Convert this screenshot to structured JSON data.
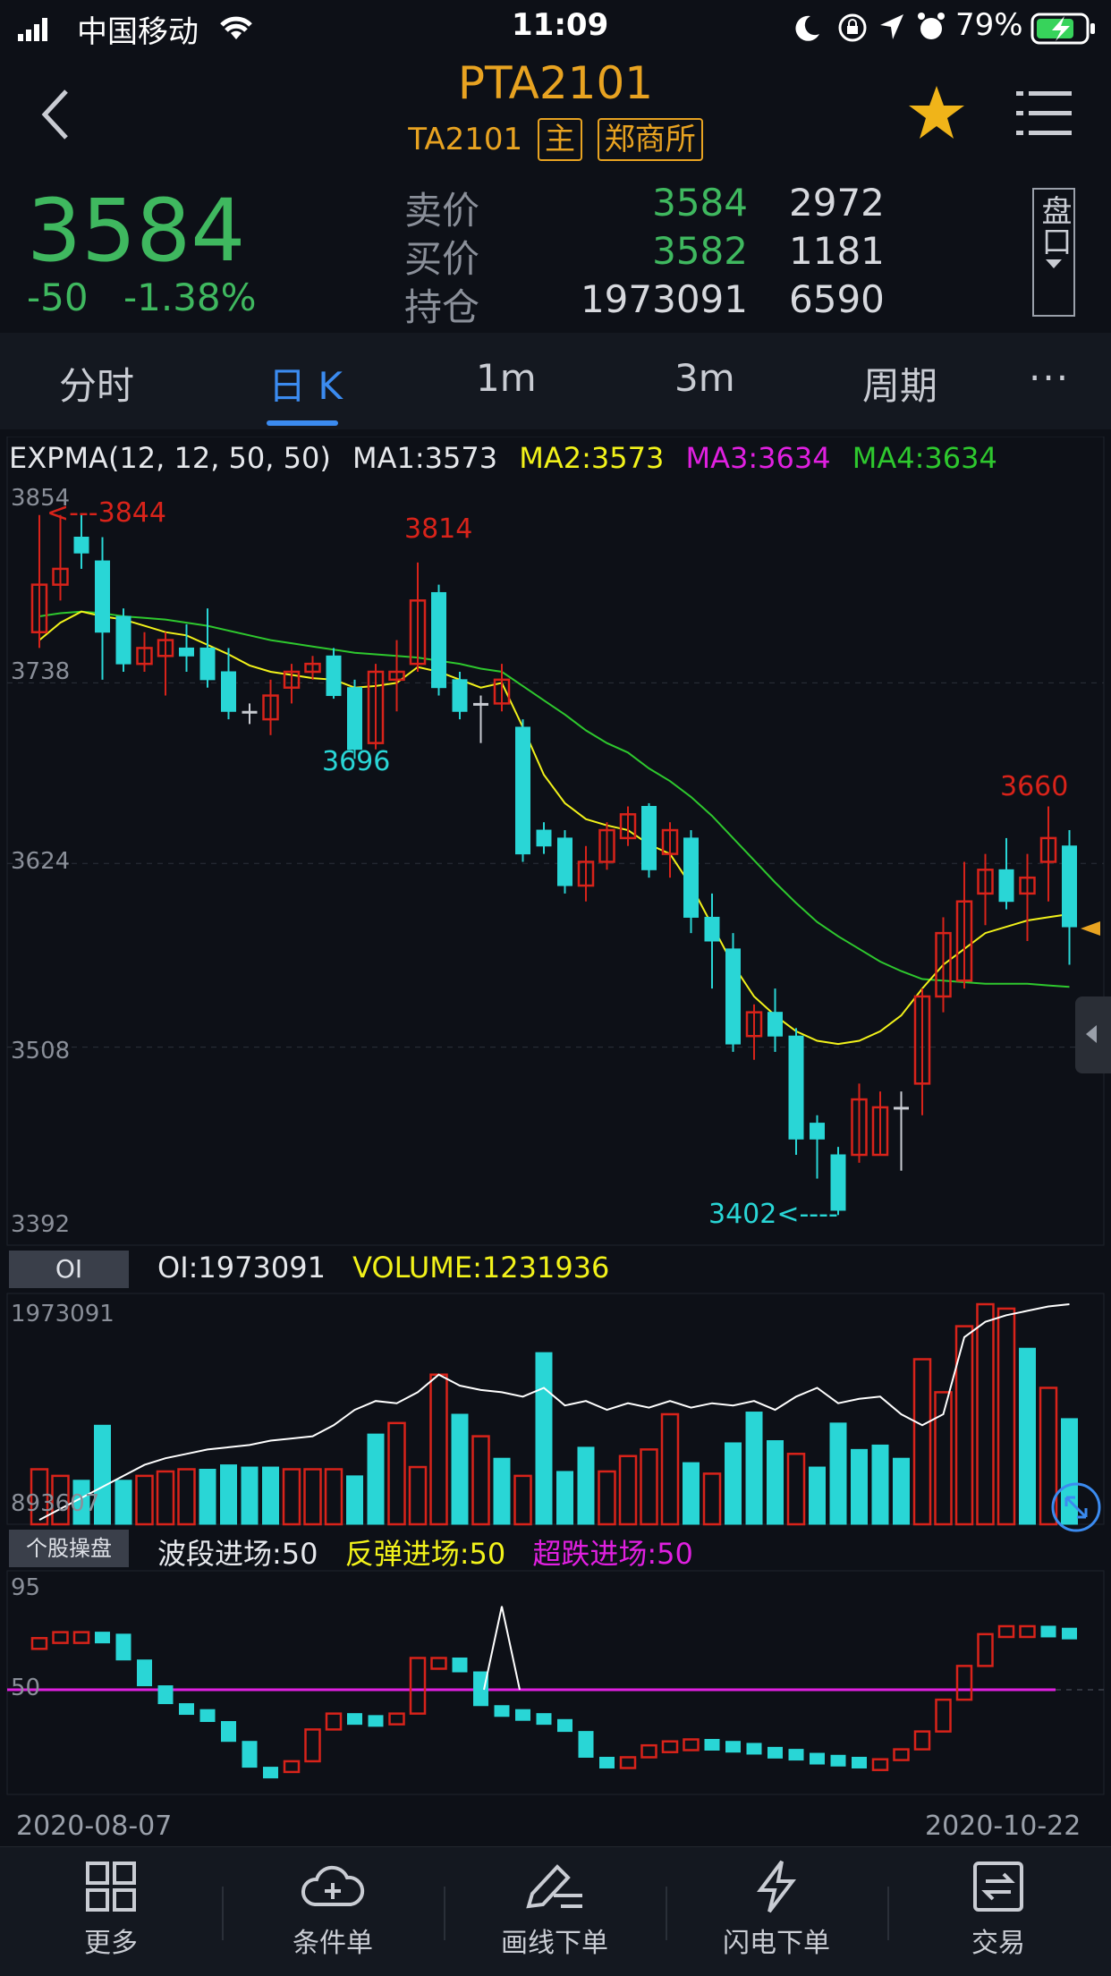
{
  "status": {
    "carrier": "中国移动",
    "time": "11:09",
    "battery": "79%"
  },
  "header": {
    "title": "PTA2101",
    "code": "TA2101",
    "tag_main": "主",
    "tag_exchange": "郑商所"
  },
  "quote": {
    "price": "3584",
    "change": "-50",
    "change_pct": "-1.38%",
    "rows": [
      {
        "label": "卖价",
        "value": "3584",
        "vol": "2972"
      },
      {
        "label": "买价",
        "value": "3582",
        "vol": "1181"
      },
      {
        "label": "持仓",
        "value": "1973091",
        "vol": "6590"
      }
    ],
    "pankou": "盘口"
  },
  "tabs": [
    {
      "label": "分时"
    },
    {
      "label": "日 K"
    },
    {
      "label": "1m"
    },
    {
      "label": "3m"
    },
    {
      "label": "周期"
    },
    {
      "label": "···"
    }
  ],
  "main_legend": {
    "ind": "EXPMA(12, 12, 50, 50)",
    "ma1": "MA1:3573",
    "ma2": "MA2:3573",
    "ma3": "MA3:3634",
    "ma4": "MA4:3634"
  },
  "colors": {
    "up": "#d8231a",
    "down": "#29d6d6",
    "ma_yellow": "#f2f21a",
    "ma_green": "#2ec82e",
    "magenta": "#e020e0",
    "accent": "#e8a321",
    "blue": "#3b8bf0"
  },
  "price_axis": [
    "3854",
    "3738",
    "3624",
    "3508",
    "3392"
  ],
  "annotations": {
    "high1": "<---3844",
    "high2": "3814",
    "low1": "3696",
    "low2": "3402<----",
    "high3": "3660"
  },
  "oi_panel": {
    "tag": "OI",
    "oi": "OI:1973091",
    "volume": "VOLUME:1231936",
    "axis_top": "1973091",
    "axis_bottom": "893607"
  },
  "osc_panel": {
    "tag": "个股操盘",
    "a": "波段进场:50",
    "b": "反弹进场:50",
    "c": "超跌进场:50",
    "axis_top": "95",
    "axis_mid": "50"
  },
  "dates": {
    "start": "2020-08-07",
    "end": "2020-10-22"
  },
  "bottom_nav": [
    {
      "label": "更多",
      "icon": "grid-icon"
    },
    {
      "label": "条件单",
      "icon": "cloud-plus-icon"
    },
    {
      "label": "画线下单",
      "icon": "pen-line-icon"
    },
    {
      "label": "闪电下单",
      "icon": "lightning-icon"
    },
    {
      "label": "交易",
      "icon": "exchange-icon"
    }
  ],
  "chart_data": {
    "type": "candlestick",
    "ylim": [
      3392,
      3854
    ],
    "candles": [
      {
        "o": 3770,
        "c": 3800,
        "h": 3844,
        "l": 3760
      },
      {
        "o": 3800,
        "c": 3810,
        "h": 3844,
        "l": 3790
      },
      {
        "o": 3830,
        "c": 3820,
        "h": 3844,
        "l": 3810
      },
      {
        "o": 3815,
        "c": 3770,
        "h": 3830,
        "l": 3740
      },
      {
        "o": 3780,
        "c": 3750,
        "h": 3785,
        "l": 3745
      },
      {
        "o": 3750,
        "c": 3760,
        "h": 3770,
        "l": 3745
      },
      {
        "o": 3755,
        "c": 3765,
        "h": 3770,
        "l": 3730
      },
      {
        "o": 3760,
        "c": 3755,
        "h": 3775,
        "l": 3745
      },
      {
        "o": 3760,
        "c": 3740,
        "h": 3785,
        "l": 3735
      },
      {
        "o": 3745,
        "c": 3720,
        "h": 3760,
        "l": 3715
      },
      {
        "o": 3720,
        "c": 3720,
        "h": 3725,
        "l": 3712
      },
      {
        "o": 3715,
        "c": 3730,
        "h": 3740,
        "l": 3705
      },
      {
        "o": 3735,
        "c": 3745,
        "h": 3750,
        "l": 3725
      },
      {
        "o": 3745,
        "c": 3750,
        "h": 3755,
        "l": 3740
      },
      {
        "o": 3755,
        "c": 3730,
        "h": 3760,
        "l": 3728
      },
      {
        "o": 3735,
        "c": 3696,
        "h": 3740,
        "l": 3690
      },
      {
        "o": 3700,
        "c": 3745,
        "h": 3750,
        "l": 3696
      },
      {
        "o": 3740,
        "c": 3745,
        "h": 3765,
        "l": 3720
      },
      {
        "o": 3750,
        "c": 3790,
        "h": 3814,
        "l": 3745
      },
      {
        "o": 3795,
        "c": 3735,
        "h": 3800,
        "l": 3730
      },
      {
        "o": 3740,
        "c": 3720,
        "h": 3745,
        "l": 3715
      },
      {
        "o": 3725,
        "c": 3725,
        "h": 3730,
        "l": 3700
      },
      {
        "o": 3725,
        "c": 3740,
        "h": 3750,
        "l": 3720
      },
      {
        "o": 3710,
        "c": 3630,
        "h": 3715,
        "l": 3625
      },
      {
        "o": 3645,
        "c": 3635,
        "h": 3650,
        "l": 3630
      },
      {
        "o": 3640,
        "c": 3610,
        "h": 3645,
        "l": 3605
      },
      {
        "o": 3610,
        "c": 3625,
        "h": 3635,
        "l": 3600
      },
      {
        "o": 3625,
        "c": 3645,
        "h": 3650,
        "l": 3620
      },
      {
        "o": 3640,
        "c": 3655,
        "h": 3660,
        "l": 3635
      },
      {
        "o": 3660,
        "c": 3620,
        "h": 3662,
        "l": 3615
      },
      {
        "o": 3630,
        "c": 3645,
        "h": 3650,
        "l": 3615
      },
      {
        "o": 3640,
        "c": 3590,
        "h": 3645,
        "l": 3580
      },
      {
        "o": 3590,
        "c": 3575,
        "h": 3605,
        "l": 3545
      },
      {
        "o": 3570,
        "c": 3510,
        "h": 3580,
        "l": 3505
      },
      {
        "o": 3515,
        "c": 3530,
        "h": 3535,
        "l": 3500
      },
      {
        "o": 3530,
        "c": 3515,
        "h": 3545,
        "l": 3505
      },
      {
        "o": 3515,
        "c": 3450,
        "h": 3520,
        "l": 3440
      },
      {
        "o": 3460,
        "c": 3450,
        "h": 3465,
        "l": 3425
      },
      {
        "o": 3440,
        "c": 3405,
        "h": 3445,
        "l": 3402
      },
      {
        "o": 3440,
        "c": 3475,
        "h": 3485,
        "l": 3435
      },
      {
        "o": 3440,
        "c": 3470,
        "h": 3480,
        "l": 3440
      },
      {
        "o": 3470,
        "c": 3470,
        "h": 3480,
        "l": 3430
      },
      {
        "o": 3485,
        "c": 3540,
        "h": 3545,
        "l": 3465
      },
      {
        "o": 3540,
        "c": 3580,
        "h": 3590,
        "l": 3530
      },
      {
        "o": 3550,
        "c": 3600,
        "h": 3625,
        "l": 3545
      },
      {
        "o": 3605,
        "c": 3620,
        "h": 3630,
        "l": 3585
      },
      {
        "o": 3620,
        "c": 3600,
        "h": 3640,
        "l": 3595
      },
      {
        "o": 3605,
        "c": 3615,
        "h": 3630,
        "l": 3575
      },
      {
        "o": 3625,
        "c": 3640,
        "h": 3660,
        "l": 3600
      },
      {
        "o": 3635,
        "c": 3584,
        "h": 3645,
        "l": 3560
      }
    ],
    "ma_yellow": [
      3765,
      3776,
      3783,
      3780,
      3778,
      3774,
      3770,
      3768,
      3762,
      3756,
      3749,
      3745,
      3743,
      3741,
      3740,
      3735,
      3736,
      3738,
      3748,
      3745,
      3740,
      3735,
      3738,
      3710,
      3680,
      3662,
      3652,
      3648,
      3645,
      3636,
      3630,
      3610,
      3585,
      3560,
      3540,
      3528,
      3518,
      3512,
      3510,
      3512,
      3518,
      3528,
      3545,
      3560,
      3570,
      3580,
      3584,
      3588,
      3590,
      3592
    ],
    "ma_green": [
      3780,
      3782,
      3783,
      3782,
      3780,
      3779,
      3778,
      3776,
      3774,
      3771,
      3768,
      3765,
      3763,
      3761,
      3759,
      3757,
      3756,
      3755,
      3754,
      3752,
      3750,
      3747,
      3745,
      3736,
      3727,
      3718,
      3708,
      3700,
      3694,
      3684,
      3676,
      3666,
      3654,
      3640,
      3626,
      3612,
      3599,
      3587,
      3578,
      3570,
      3562,
      3556,
      3551,
      3550,
      3549,
      3548,
      3548,
      3548,
      3547,
      3546
    ],
    "oi_volume": [
      {
        "v": 0.25,
        "up": true
      },
      {
        "v": 0.22,
        "up": true
      },
      {
        "v": 0.2,
        "up": false
      },
      {
        "v": 0.45,
        "up": false
      },
      {
        "v": 0.2,
        "up": false
      },
      {
        "v": 0.22,
        "up": true
      },
      {
        "v": 0.24,
        "up": true
      },
      {
        "v": 0.25,
        "up": true
      },
      {
        "v": 0.25,
        "up": false
      },
      {
        "v": 0.27,
        "up": false
      },
      {
        "v": 0.26,
        "up": false
      },
      {
        "v": 0.26,
        "up": false
      },
      {
        "v": 0.25,
        "up": true
      },
      {
        "v": 0.25,
        "up": true
      },
      {
        "v": 0.25,
        "up": true
      },
      {
        "v": 0.22,
        "up": false
      },
      {
        "v": 0.41,
        "up": false
      },
      {
        "v": 0.46,
        "up": true
      },
      {
        "v": 0.26,
        "up": true
      },
      {
        "v": 0.68,
        "up": true
      },
      {
        "v": 0.5,
        "up": false
      },
      {
        "v": 0.4,
        "up": true
      },
      {
        "v": 0.3,
        "up": false
      },
      {
        "v": 0.22,
        "up": true
      },
      {
        "v": 0.78,
        "up": false
      },
      {
        "v": 0.24,
        "up": false
      },
      {
        "v": 0.35,
        "up": false
      },
      {
        "v": 0.24,
        "up": true
      },
      {
        "v": 0.31,
        "up": true
      },
      {
        "v": 0.34,
        "up": true
      },
      {
        "v": 0.5,
        "up": true
      },
      {
        "v": 0.28,
        "up": false
      },
      {
        "v": 0.23,
        "up": true
      },
      {
        "v": 0.37,
        "up": false
      },
      {
        "v": 0.51,
        "up": false
      },
      {
        "v": 0.38,
        "up": false
      },
      {
        "v": 0.32,
        "up": true
      },
      {
        "v": 0.26,
        "up": false
      },
      {
        "v": 0.46,
        "up": false
      },
      {
        "v": 0.34,
        "up": false
      },
      {
        "v": 0.36,
        "up": false
      },
      {
        "v": 0.3,
        "up": false
      },
      {
        "v": 0.75,
        "up": true
      },
      {
        "v": 0.6,
        "up": true
      },
      {
        "v": 0.9,
        "up": true
      },
      {
        "v": 1.0,
        "up": true
      },
      {
        "v": 0.98,
        "up": true
      },
      {
        "v": 0.8,
        "up": false
      },
      {
        "v": 0.62,
        "up": true
      },
      {
        "v": 0.48,
        "up": false
      }
    ],
    "oi_line": [
      0.02,
      0.07,
      0.12,
      0.17,
      0.22,
      0.27,
      0.3,
      0.32,
      0.34,
      0.35,
      0.36,
      0.38,
      0.39,
      0.4,
      0.45,
      0.52,
      0.56,
      0.55,
      0.6,
      0.68,
      0.63,
      0.61,
      0.6,
      0.58,
      0.62,
      0.54,
      0.56,
      0.52,
      0.55,
      0.53,
      0.56,
      0.53,
      0.55,
      0.54,
      0.56,
      0.52,
      0.58,
      0.62,
      0.55,
      0.57,
      0.58,
      0.5,
      0.45,
      0.5,
      0.85,
      0.92,
      0.95,
      0.97,
      0.99,
      1.0
    ],
    "osc_bars": [
      76,
      79,
      79,
      78,
      65,
      52,
      43,
      40,
      34,
      24,
      11,
      9,
      14,
      30,
      38,
      37,
      34,
      38,
      66,
      66,
      59,
      42,
      40,
      38,
      35,
      29,
      16,
      15,
      16,
      22,
      24,
      25,
      24,
      23,
      21,
      20,
      18,
      17,
      16,
      14,
      15,
      20,
      29,
      45,
      62,
      78,
      82,
      82,
      81,
      80
    ],
    "osc_spike_index": 22,
    "osc_spike_value": 92
  }
}
